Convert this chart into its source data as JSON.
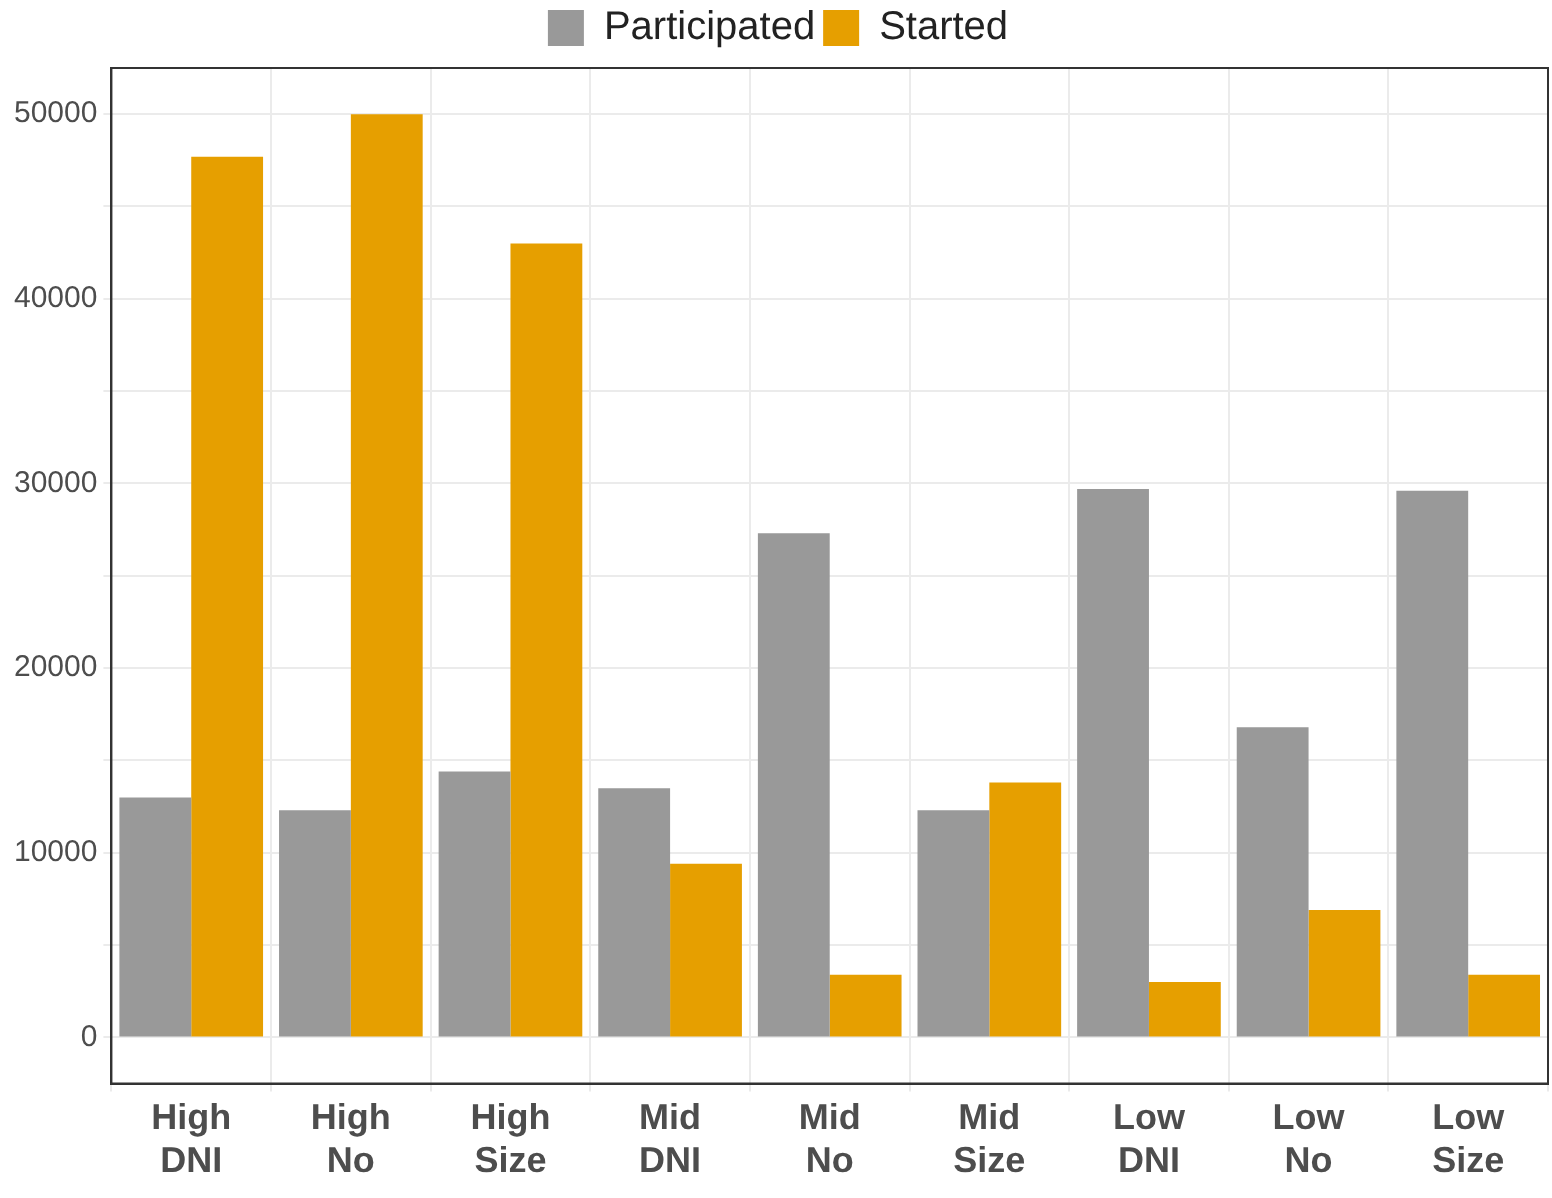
{
  "chart_data": {
    "type": "bar",
    "categories": [
      "High DNI",
      "High No",
      "High Size",
      "Mid DNI",
      "Mid No",
      "Mid Size",
      "Low DNI",
      "Low No",
      "Low Size"
    ],
    "series": [
      {
        "name": "Participated",
        "color": "#999999",
        "values": [
          13000,
          12300,
          14400,
          13500,
          27300,
          12300,
          29700,
          16800,
          29600
        ]
      },
      {
        "name": "Started",
        "color": "#e69f00",
        "values": [
          47700,
          50000,
          43000,
          9400,
          3400,
          13800,
          3000,
          6900,
          3400
        ]
      }
    ],
    "ylim": [
      -2500,
      52500
    ],
    "yticks": [
      0,
      {
        "value": 5000,
        "label": null
      },
      10000,
      {
        "value": 15000,
        "label": null
      },
      20000,
      {
        "value": 25000,
        "label": null
      },
      30000,
      {
        "value": 35000,
        "label": null
      },
      40000,
      {
        "value": 45000,
        "label": null
      },
      50000
    ],
    "grid": true,
    "legend": "top"
  }
}
